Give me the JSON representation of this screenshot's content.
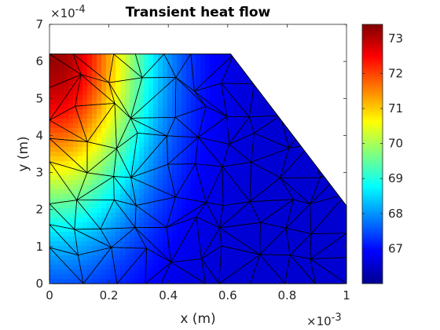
{
  "chart_data": {
    "type": "heatmap",
    "title": "Transient heat flow",
    "xlabel": "x (m)",
    "ylabel": "y (m)",
    "x_exponent_label": "×10",
    "x_exponent_power": "-3",
    "y_exponent_label": "×10",
    "y_exponent_power": "-4",
    "xlim": [
      0,
      0.001
    ],
    "ylim": [
      0,
      0.0007
    ],
    "x_tick_values": [
      0,
      0.0002,
      0.0004,
      0.0006,
      0.0008,
      0.001
    ],
    "x_ticks": [
      "0",
      "0.2",
      "0.4",
      "0.6",
      "0.8",
      "1"
    ],
    "y_tick_values": [
      0,
      0.0001,
      0.0002,
      0.0003,
      0.0004,
      0.0005,
      0.0006,
      0.0007
    ],
    "y_ticks": [
      "0",
      "1",
      "2",
      "3",
      "4",
      "5",
      "6",
      "7"
    ],
    "domain_polygon": [
      [
        0,
        0
      ],
      [
        0.001,
        0
      ],
      [
        0.001,
        0.00021
      ],
      [
        0.00061,
        0.00062
      ],
      [
        0,
        0.00062
      ]
    ],
    "hot_spot": [
      2e-05,
      0.00062
    ],
    "temperature_range": [
      66.0,
      73.4
    ],
    "colormap": "jet",
    "colorbar": {
      "tick_values": [
        67,
        68,
        69,
        70,
        71,
        72,
        73
      ],
      "tick_labels": [
        "67",
        "68",
        "69",
        "70",
        "71",
        "72",
        "73"
      ],
      "location": "right"
    },
    "grid": false,
    "mesh": "triangular"
  },
  "colors": {
    "mesh_edge": "#000000",
    "axis": "#262626"
  }
}
